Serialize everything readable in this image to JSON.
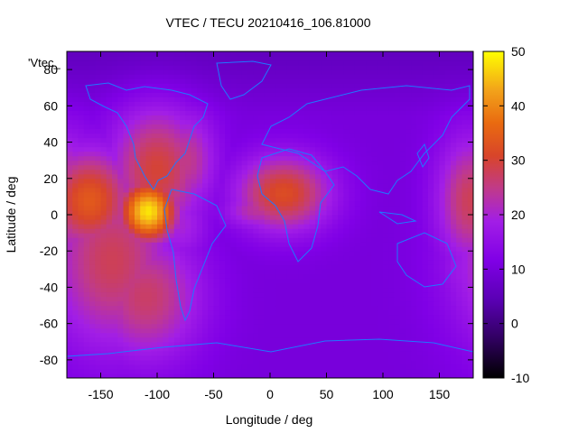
{
  "chart_data": {
    "type": "heatmap",
    "title": "VTEC / TECU 20210416_106.81000",
    "xlabel": "Longitude / deg",
    "ylabel": "Latitude / deg",
    "key_label": "'Vtec_",
    "xlim": [
      -180,
      180
    ],
    "ylim": [
      -90,
      90
    ],
    "x_ticks": [
      -150,
      -100,
      -50,
      0,
      50,
      100,
      150
    ],
    "y_ticks": [
      -80,
      -60,
      -40,
      -20,
      0,
      20,
      40,
      60,
      80
    ],
    "colorbar": {
      "range": [
        -10,
        50
      ],
      "ticks": [
        -10,
        0,
        10,
        20,
        30,
        40,
        50
      ]
    },
    "background_value": 10,
    "blobs": [
      {
        "lon": -108,
        "lat": 2,
        "value": 48,
        "width_lon": 18,
        "width_lat": 12
      },
      {
        "lon": -160,
        "lat": 8,
        "value": 34,
        "width_lon": 28,
        "width_lat": 20
      },
      {
        "lon": -140,
        "lat": -25,
        "value": 28,
        "width_lon": 40,
        "width_lat": 35
      },
      {
        "lon": -110,
        "lat": -45,
        "value": 27,
        "width_lon": 35,
        "width_lat": 25
      },
      {
        "lon": -100,
        "lat": 25,
        "value": 30,
        "width_lon": 30,
        "width_lat": 25
      },
      {
        "lon": -75,
        "lat": 30,
        "value": 25,
        "width_lon": 20,
        "width_lat": 20
      },
      {
        "lon": -80,
        "lat": -5,
        "value": 20,
        "width_lon": 18,
        "width_lat": 15
      },
      {
        "lon": 12,
        "lat": 12,
        "value": 32,
        "width_lon": 30,
        "width_lat": 15
      },
      {
        "lon": -10,
        "lat": 3,
        "value": 24,
        "width_lon": 22,
        "width_lat": 8
      },
      {
        "lon": 178,
        "lat": 8,
        "value": 28,
        "width_lon": 22,
        "width_lat": 25
      },
      {
        "lon": 170,
        "lat": -30,
        "value": 18,
        "width_lon": 15,
        "width_lat": 18
      }
    ],
    "colors": {
      "outline": "#00a0ff",
      "coast": "#1f78ff"
    }
  }
}
